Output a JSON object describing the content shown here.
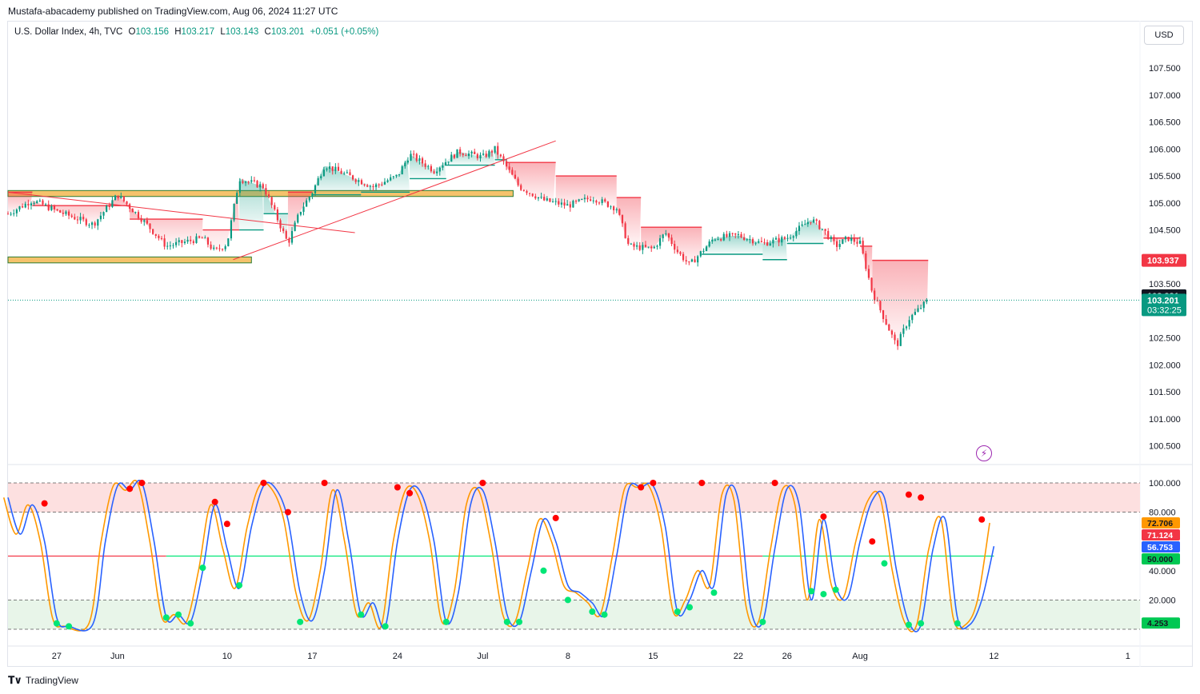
{
  "header": {
    "publisher_line": "Mustafa-abacademy published on TradingView.com, Aug 06, 2024 11:27 UTC"
  },
  "legend": {
    "symbol": "U.S. Dollar Index, 4h, TVC",
    "o_label": "O",
    "o_value": "103.156",
    "h_label": "H",
    "h_value": "103.217",
    "l_label": "L",
    "l_value": "103.143",
    "c_label": "C",
    "c_value": "103.201",
    "change": "+0.051 (+0.05%)"
  },
  "currency_button": "USD",
  "brand": {
    "logo_icon": "tradingview-logo-icon",
    "name": "TradingView"
  },
  "colors": {
    "up": "#089981",
    "down": "#f23645",
    "zone": "#f5c26b",
    "zone_border": "#2e7d32",
    "stoch_k": "#2962ff",
    "stoch_d": "#ff9800",
    "ob_fill": "#fde0e0",
    "os_fill": "#e8f5e9"
  },
  "chart_data": [
    {
      "type": "candlestick",
      "title": "U.S. Dollar Index, 4h, TVC",
      "ylim": [
        100.2,
        107.9
      ],
      "y_ticks": [
        "107.500",
        "107.000",
        "106.500",
        "106.000",
        "105.500",
        "105.000",
        "104.500",
        "104.000",
        "103.500",
        "103.000",
        "102.500",
        "102.000",
        "101.500",
        "101.000",
        "100.500"
      ],
      "x_ticks": [
        "27",
        "Jun",
        "10",
        "17",
        "24",
        "Jul",
        "8",
        "15",
        "22",
        "26",
        "Aug",
        "12",
        "1"
      ],
      "x_tick_days": [
        -5,
        0,
        9,
        16,
        23,
        30,
        37,
        44,
        51,
        55,
        61,
        72,
        83
      ],
      "day_range": [
        -9,
        84
      ],
      "last_day": 66.6,
      "price_path": [
        [
          -9,
          104.8
        ],
        [
          -7,
          105.05
        ],
        [
          -5,
          104.85
        ],
        [
          -2,
          104.6
        ],
        [
          0,
          105.15
        ],
        [
          2,
          104.7
        ],
        [
          4,
          104.2
        ],
        [
          7,
          104.35
        ],
        [
          8,
          104.1
        ],
        [
          9,
          104.25
        ],
        [
          10,
          105.45
        ],
        [
          12,
          105.3
        ],
        [
          14,
          104.25
        ],
        [
          15,
          104.85
        ],
        [
          16,
          105.2
        ],
        [
          17,
          105.7
        ],
        [
          19,
          105.5
        ],
        [
          21,
          105.3
        ],
        [
          23,
          105.5
        ],
        [
          24,
          105.9
        ],
        [
          26,
          105.6
        ],
        [
          28,
          105.95
        ],
        [
          30,
          105.85
        ],
        [
          31,
          106.0
        ],
        [
          33,
          105.3
        ],
        [
          35,
          105.05
        ],
        [
          37,
          104.95
        ],
        [
          39,
          105.1
        ],
        [
          41,
          104.9
        ],
        [
          42,
          104.2
        ],
        [
          44,
          104.15
        ],
        [
          45,
          104.45
        ],
        [
          46,
          104.1
        ],
        [
          47,
          103.85
        ],
        [
          49,
          104.35
        ],
        [
          51,
          104.4
        ],
        [
          53,
          104.25
        ],
        [
          55,
          104.35
        ],
        [
          57,
          104.7
        ],
        [
          58,
          104.5
        ],
        [
          59,
          104.2
        ],
        [
          60,
          104.35
        ],
        [
          61,
          104.25
        ],
        [
          62,
          103.35
        ],
        [
          63,
          102.85
        ],
        [
          64,
          102.35
        ],
        [
          65,
          102.85
        ],
        [
          66.6,
          103.2
        ]
      ],
      "supertrend": [
        {
          "from": -9,
          "to": -7,
          "dir": "down",
          "level": 105.2
        },
        {
          "from": -7,
          "to": 1,
          "dir": "down",
          "level": 104.95
        },
        {
          "from": 1,
          "to": 7,
          "dir": "down",
          "level": 104.7
        },
        {
          "from": 7,
          "to": 10,
          "dir": "down",
          "level": 104.5
        },
        {
          "from": 10,
          "to": 12,
          "dir": "up",
          "level": 104.5
        },
        {
          "from": 12,
          "to": 14,
          "dir": "up",
          "level": 104.8
        },
        {
          "from": 14,
          "to": 16,
          "dir": "down",
          "level": 105.2
        },
        {
          "from": 16,
          "to": 20,
          "dir": "up",
          "level": 105.15
        },
        {
          "from": 20,
          "to": 24,
          "dir": "up",
          "level": 105.2
        },
        {
          "from": 24,
          "to": 27,
          "dir": "up",
          "level": 105.45
        },
        {
          "from": 27,
          "to": 31,
          "dir": "up",
          "level": 105.7
        },
        {
          "from": 31,
          "to": 32,
          "dir": "up",
          "level": 105.8
        },
        {
          "from": 32,
          "to": 36,
          "dir": "down",
          "level": 105.75
        },
        {
          "from": 36,
          "to": 41,
          "dir": "down",
          "level": 105.5
        },
        {
          "from": 41,
          "to": 43,
          "dir": "down",
          "level": 105.1
        },
        {
          "from": 43,
          "to": 48,
          "dir": "down",
          "level": 104.55
        },
        {
          "from": 48,
          "to": 53,
          "dir": "up",
          "level": 104.05
        },
        {
          "from": 53,
          "to": 55,
          "dir": "up",
          "level": 103.95
        },
        {
          "from": 55,
          "to": 58,
          "dir": "up",
          "level": 104.25
        },
        {
          "from": 58,
          "to": 61,
          "dir": "down",
          "level": 104.35
        },
        {
          "from": 61,
          "to": 62,
          "dir": "down",
          "level": 104.2
        },
        {
          "from": 62,
          "to": 66.6,
          "dir": "down",
          "level": 103.937
        }
      ],
      "zones": [
        {
          "from": -9,
          "to": 32.5,
          "top": 105.2,
          "bottom": 105.15
        },
        {
          "from": -9,
          "to": 11,
          "top": 103.97,
          "bottom": 103.92
        }
      ],
      "trendlines": [
        {
          "from": [
            -9,
            105.2
          ],
          "to": [
            19.5,
            104.45
          ],
          "color": "#f23645"
        },
        {
          "from": [
            9.5,
            103.95
          ],
          "to": [
            36,
            106.15
          ],
          "color": "#f23645"
        }
      ],
      "price_labels": [
        {
          "text": "103.937",
          "value": 103.937,
          "bg": "#f23645",
          "color": "#ffffff"
        },
        {
          "text": "103.281",
          "value": 103.281,
          "bg": "#131722",
          "color": "#ffffff"
        },
        {
          "text": "103.201",
          "sub": "03:32:25",
          "value": 103.201,
          "bg": "#089981",
          "color": "#ffffff"
        }
      ],
      "current_price": 103.201
    },
    {
      "type": "line",
      "title": "Stochastic RSI",
      "ylim": [
        0,
        100
      ],
      "y_ticks": [
        "100.000",
        "80.000",
        "40.000",
        "20.000"
      ],
      "levels": [
        100,
        80,
        50,
        20,
        0
      ],
      "k_pivots": [
        [
          -9,
          90
        ],
        [
          -8,
          65
        ],
        [
          -7,
          85
        ],
        [
          -6,
          60
        ],
        [
          -5,
          8
        ],
        [
          -4,
          2
        ],
        [
          -2,
          4
        ],
        [
          -1,
          60
        ],
        [
          0,
          98
        ],
        [
          1,
          95
        ],
        [
          2,
          100
        ],
        [
          3,
          60
        ],
        [
          4,
          8
        ],
        [
          5,
          10
        ],
        [
          6,
          5
        ],
        [
          7,
          40
        ],
        [
          8,
          85
        ],
        [
          9,
          55
        ],
        [
          10,
          28
        ],
        [
          11,
          70
        ],
        [
          12,
          98
        ],
        [
          13,
          96
        ],
        [
          14,
          75
        ],
        [
          15,
          25
        ],
        [
          16,
          6
        ],
        [
          17,
          40
        ],
        [
          18,
          95
        ],
        [
          19,
          60
        ],
        [
          20,
          10
        ],
        [
          21,
          18
        ],
        [
          22,
          2
        ],
        [
          23,
          60
        ],
        [
          24,
          95
        ],
        [
          25,
          92
        ],
        [
          26,
          60
        ],
        [
          27,
          5
        ],
        [
          28,
          25
        ],
        [
          29,
          85
        ],
        [
          30,
          95
        ],
        [
          31,
          60
        ],
        [
          32,
          10
        ],
        [
          33,
          5
        ],
        [
          34,
          40
        ],
        [
          35,
          75
        ],
        [
          36,
          60
        ],
        [
          37,
          30
        ],
        [
          38,
          25
        ],
        [
          39,
          18
        ],
        [
          40,
          10
        ],
        [
          41,
          50
        ],
        [
          42,
          96
        ],
        [
          43,
          97
        ],
        [
          44,
          98
        ],
        [
          45,
          70
        ],
        [
          46,
          12
        ],
        [
          47,
          20
        ],
        [
          48,
          40
        ],
        [
          49,
          30
        ],
        [
          50,
          92
        ],
        [
          51,
          88
        ],
        [
          52,
          15
        ],
        [
          53,
          5
        ],
        [
          54,
          55
        ],
        [
          55,
          96
        ],
        [
          56,
          85
        ],
        [
          57,
          20
        ],
        [
          58,
          75
        ],
        [
          59,
          30
        ],
        [
          60,
          22
        ],
        [
          61,
          60
        ],
        [
          62,
          88
        ],
        [
          63,
          90
        ],
        [
          64,
          40
        ],
        [
          65,
          5
        ],
        [
          66,
          3
        ],
        [
          67,
          55
        ],
        [
          68,
          75
        ],
        [
          69,
          8
        ],
        [
          70,
          3
        ],
        [
          71,
          20
        ],
        [
          72,
          56.753
        ]
      ],
      "k_current": 56.753,
      "d_current": 72.706,
      "markers_red": [
        [
          -6,
          86
        ],
        [
          1,
          96
        ],
        [
          2,
          100
        ],
        [
          8,
          87
        ],
        [
          9,
          72
        ],
        [
          12,
          100
        ],
        [
          14,
          80
        ],
        [
          17,
          100
        ],
        [
          23,
          97
        ],
        [
          24,
          93
        ],
        [
          30,
          100
        ],
        [
          36,
          76
        ],
        [
          43,
          97
        ],
        [
          44,
          100
        ],
        [
          48,
          100
        ],
        [
          54,
          100
        ],
        [
          58,
          77
        ],
        [
          62,
          60
        ],
        [
          65,
          92
        ],
        [
          66,
          90
        ],
        [
          71,
          75
        ]
      ],
      "markers_green": [
        [
          -5,
          4
        ],
        [
          -4,
          2
        ],
        [
          4,
          8
        ],
        [
          5,
          10
        ],
        [
          6,
          4
        ],
        [
          7,
          42
        ],
        [
          10,
          30
        ],
        [
          15,
          5
        ],
        [
          20,
          10
        ],
        [
          22,
          2
        ],
        [
          27,
          5
        ],
        [
          32,
          5
        ],
        [
          33,
          5
        ],
        [
          35,
          40
        ],
        [
          37,
          20
        ],
        [
          39,
          12
        ],
        [
          40,
          10
        ],
        [
          46,
          12
        ],
        [
          47,
          15
        ],
        [
          49,
          25
        ],
        [
          53,
          5
        ],
        [
          57,
          26
        ],
        [
          58,
          24
        ],
        [
          59,
          27
        ],
        [
          63,
          45
        ],
        [
          65,
          3
        ],
        [
          66,
          4
        ],
        [
          69,
          4
        ]
      ],
      "value_labels": [
        {
          "text": "72.706",
          "value": 72.706,
          "bg": "#ff9800",
          "color": "#131722"
        },
        {
          "text": "71.124",
          "value": 71.124,
          "bg": "#f23645",
          "color": "#ffffff"
        },
        {
          "text": "56.753",
          "value": 56.753,
          "bg": "#2962ff",
          "color": "#ffffff"
        },
        {
          "text": "50.000",
          "value": 50,
          "bg": "#00c853",
          "color": "#131722"
        },
        {
          "text": "4.253",
          "value": 4.253,
          "bg": "#00c853",
          "color": "#131722"
        }
      ]
    }
  ]
}
